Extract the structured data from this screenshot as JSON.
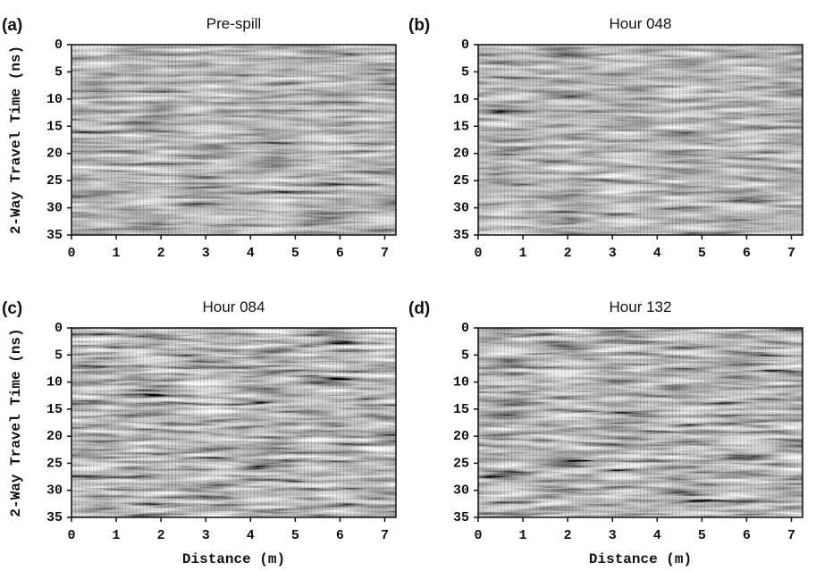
{
  "chart_data": [
    {
      "type": "radargram",
      "panel_label": "(a)",
      "title": "Pre-spill",
      "ylabel": "2-Way Travel Time (ns)",
      "xlim": [
        0,
        7.25
      ],
      "ylim": [
        0,
        35
      ],
      "xticks": [
        0,
        1,
        2,
        3,
        4,
        5,
        6,
        7
      ],
      "yticks": [
        0,
        5,
        10,
        15,
        20,
        25,
        30,
        35
      ]
    },
    {
      "type": "radargram",
      "panel_label": "(b)",
      "title": "Hour 048",
      "xlim": [
        0,
        7.25
      ],
      "ylim": [
        0,
        35
      ],
      "xticks": [
        0,
        1,
        2,
        3,
        4,
        5,
        6,
        7
      ],
      "yticks": [
        0,
        5,
        10,
        15,
        20,
        25,
        30,
        35
      ]
    },
    {
      "type": "radargram",
      "panel_label": "(c)",
      "title": "Hour 084",
      "ylabel": "2-Way Travel Time (ns)",
      "xlabel": "Distance (m)",
      "xlim": [
        0,
        7.25
      ],
      "ylim": [
        0,
        35
      ],
      "xticks": [
        0,
        1,
        2,
        3,
        4,
        5,
        6,
        7
      ],
      "yticks": [
        0,
        5,
        10,
        15,
        20,
        25,
        30,
        35
      ]
    },
    {
      "type": "radargram",
      "panel_label": "(d)",
      "title": "Hour 132",
      "xlabel": "Distance (m)",
      "xlim": [
        0,
        7.25
      ],
      "ylim": [
        0,
        35
      ],
      "xticks": [
        0,
        1,
        2,
        3,
        4,
        5,
        6,
        7
      ],
      "yticks": [
        0,
        5,
        10,
        15,
        20,
        25,
        30,
        35
      ]
    }
  ]
}
